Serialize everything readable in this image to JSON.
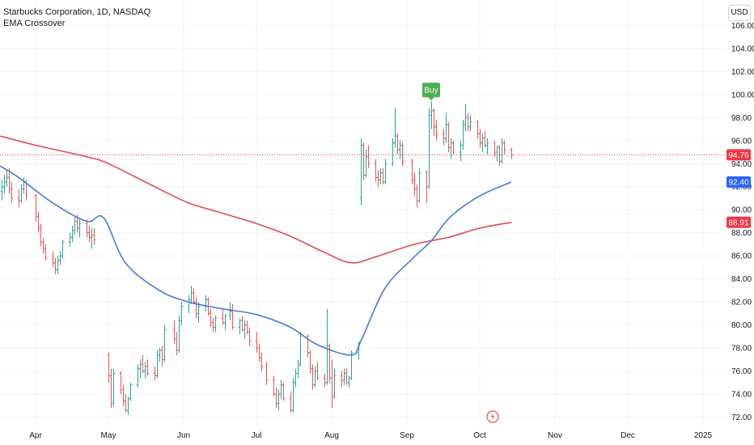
{
  "legend": {
    "symbol": "Starbucks Corporation, 1D, NASDAQ",
    "indicator": "EMA Crossover"
  },
  "currency": "USD",
  "colors": {
    "up": "#26a69a",
    "down": "#ef5350",
    "ema_fast": "#4a7bd8",
    "ema_slow": "#e34a54",
    "last_price_tag": "#f23645",
    "fast_tag": "#2962ff",
    "slow_tag": "#f23645",
    "buy_signal": "#4caf50",
    "grid": "#f0f3fa"
  },
  "chart_data": {
    "type": "ohlc",
    "ylim": [
      71.2,
      108.2
    ],
    "y_ticks": [
      "72.00",
      "74.00",
      "76.00",
      "78.00",
      "80.00",
      "82.00",
      "84.00",
      "86.00",
      "88.00",
      "90.00",
      "92.00",
      "94.00",
      "96.00",
      "98.00",
      "100.00",
      "102.00",
      "104.00",
      "106.00"
    ],
    "x_ticks": [
      {
        "label": "Apr",
        "x": "2024-04-01"
      },
      {
        "label": "May",
        "x": "2024-05-01"
      },
      {
        "label": "Jun",
        "x": "2024-06-01"
      },
      {
        "label": "Jul",
        "x": "2024-07-01"
      },
      {
        "label": "Aug",
        "x": "2024-08-01"
      },
      {
        "label": "Sep",
        "x": "2024-09-01"
      },
      {
        "label": "Oct",
        "x": "2024-10-01"
      },
      {
        "label": "Nov",
        "x": "2024-11-01"
      },
      {
        "label": "Dec",
        "x": "2024-12-01"
      },
      {
        "label": "2025",
        "x": "2025-01-01"
      }
    ],
    "grid": true,
    "last_price": {
      "label": "94.76",
      "value": 94.76
    },
    "ema_fast_last": {
      "label": "92.40",
      "value": 92.4
    },
    "ema_slow_last": {
      "label": "88.91",
      "value": 88.91
    },
    "buy_signal": {
      "label": "Buy",
      "date": "2024-09-11",
      "price": 99.2
    },
    "ema_fast": [
      [
        "2024-03-14",
        93.8
      ],
      [
        "2024-03-25",
        92.8
      ],
      [
        "2024-04-08",
        90.6
      ],
      [
        "2024-04-22",
        89.0
      ],
      [
        "2024-04-29",
        89.3
      ],
      [
        "2024-05-08",
        85.4
      ],
      [
        "2024-05-22",
        83.0
      ],
      [
        "2024-06-03",
        82.0
      ],
      [
        "2024-06-17",
        81.4
      ],
      [
        "2024-07-01",
        80.9
      ],
      [
        "2024-07-15",
        79.8
      ],
      [
        "2024-07-26",
        78.3
      ],
      [
        "2024-08-09",
        77.4
      ],
      [
        "2024-08-13",
        78.6
      ],
      [
        "2024-08-23",
        83.2
      ],
      [
        "2024-09-04",
        85.9
      ],
      [
        "2024-09-11",
        87.3
      ],
      [
        "2024-09-19",
        89.4
      ],
      [
        "2024-10-01",
        91.2
      ],
      [
        "2024-10-14",
        92.4
      ]
    ],
    "ema_slow": [
      [
        "2024-03-14",
        96.4
      ],
      [
        "2024-04-01",
        95.6
      ],
      [
        "2024-04-22",
        94.6
      ],
      [
        "2024-05-01",
        94.0
      ],
      [
        "2024-05-20",
        92.0
      ],
      [
        "2024-06-03",
        90.6
      ],
      [
        "2024-06-17",
        89.7
      ],
      [
        "2024-07-01",
        88.8
      ],
      [
        "2024-07-15",
        87.7
      ],
      [
        "2024-07-29",
        86.3
      ],
      [
        "2024-08-09",
        85.4
      ],
      [
        "2024-08-19",
        85.9
      ],
      [
        "2024-09-04",
        87.0
      ],
      [
        "2024-09-18",
        87.6
      ],
      [
        "2024-10-01",
        88.4
      ],
      [
        "2024-10-14",
        88.91
      ]
    ],
    "ohlc": [
      [
        "2024-03-15",
        91.0,
        92.4,
        90.2,
        91.6
      ],
      [
        "2024-03-18",
        91.6,
        92.6,
        90.8,
        92.0
      ],
      [
        "2024-03-19",
        92.0,
        93.0,
        91.4,
        92.4
      ],
      [
        "2024-03-20",
        92.4,
        93.4,
        92.0,
        92.8
      ],
      [
        "2024-03-21",
        92.8,
        93.6,
        91.4,
        91.8
      ],
      [
        "2024-03-22",
        91.8,
        92.4,
        90.6,
        91.0
      ],
      [
        "2024-03-25",
        91.0,
        91.8,
        90.2,
        90.8
      ],
      [
        "2024-03-26",
        90.8,
        92.2,
        90.6,
        91.8
      ],
      [
        "2024-03-27",
        91.8,
        92.8,
        91.4,
        92.4
      ],
      [
        "2024-03-28",
        92.4,
        92.6,
        90.8,
        91.2
      ],
      [
        "2024-04-01",
        91.2,
        91.4,
        89.0,
        89.4
      ],
      [
        "2024-04-02",
        89.4,
        89.8,
        88.0,
        88.4
      ],
      [
        "2024-04-03",
        88.4,
        88.8,
        86.8,
        87.2
      ],
      [
        "2024-04-04",
        87.2,
        87.6,
        86.2,
        86.6
      ],
      [
        "2024-04-05",
        86.6,
        87.0,
        85.6,
        85.8
      ],
      [
        "2024-04-08",
        85.8,
        86.4,
        85.0,
        85.4
      ],
      [
        "2024-04-09",
        85.4,
        85.8,
        84.4,
        84.8
      ],
      [
        "2024-04-10",
        84.8,
        86.0,
        84.4,
        85.6
      ],
      [
        "2024-04-11",
        85.6,
        86.4,
        85.2,
        86.0
      ],
      [
        "2024-04-12",
        86.0,
        87.4,
        85.8,
        87.2
      ],
      [
        "2024-04-15",
        87.2,
        88.0,
        86.8,
        87.6
      ],
      [
        "2024-04-16",
        87.6,
        88.6,
        87.2,
        88.2
      ],
      [
        "2024-04-17",
        88.2,
        89.4,
        87.8,
        89.0
      ],
      [
        "2024-04-18",
        89.0,
        89.6,
        88.0,
        88.4
      ],
      [
        "2024-04-19",
        88.4,
        89.2,
        87.6,
        88.8
      ],
      [
        "2024-04-22",
        88.8,
        89.2,
        87.6,
        88.0
      ],
      [
        "2024-04-23",
        88.0,
        88.6,
        87.2,
        87.6
      ],
      [
        "2024-04-24",
        87.6,
        88.4,
        86.6,
        87.8
      ],
      [
        "2024-04-25",
        87.8,
        88.4,
        87.0,
        87.4
      ],
      [
        "2024-05-01",
        77.4,
        77.6,
        75.0,
        75.6
      ],
      [
        "2024-05-02",
        75.6,
        76.2,
        72.8,
        73.2
      ],
      [
        "2024-05-03",
        73.2,
        76.2,
        72.9,
        75.8
      ],
      [
        "2024-05-06",
        75.8,
        76.0,
        74.0,
        74.4
      ],
      [
        "2024-05-07",
        74.4,
        74.8,
        73.0,
        73.4
      ],
      [
        "2024-05-08",
        73.4,
        74.0,
        72.4,
        72.6
      ],
      [
        "2024-05-09",
        72.6,
        73.8,
        72.2,
        73.6
      ],
      [
        "2024-05-10",
        73.6,
        75.0,
        73.4,
        74.8
      ],
      [
        "2024-05-13",
        74.8,
        76.6,
        74.6,
        76.2
      ],
      [
        "2024-05-14",
        76.2,
        77.0,
        75.4,
        76.6
      ],
      [
        "2024-05-15",
        76.6,
        77.4,
        75.8,
        76.0
      ],
      [
        "2024-05-16",
        76.0,
        76.8,
        75.4,
        76.4
      ],
      [
        "2024-05-17",
        76.4,
        77.0,
        75.6,
        75.8
      ],
      [
        "2024-05-20",
        75.8,
        76.4,
        75.2,
        75.6
      ],
      [
        "2024-05-21",
        75.6,
        77.8,
        75.4,
        77.4
      ],
      [
        "2024-05-22",
        77.4,
        78.0,
        76.8,
        77.8
      ],
      [
        "2024-05-23",
        77.8,
        78.2,
        76.4,
        77.0
      ],
      [
        "2024-05-24",
        77.0,
        80.0,
        76.8,
        79.6
      ],
      [
        "2024-05-28",
        79.6,
        80.4,
        78.4,
        78.8
      ],
      [
        "2024-05-29",
        78.8,
        79.4,
        77.4,
        77.8
      ],
      [
        "2024-05-30",
        77.8,
        80.8,
        77.6,
        80.4
      ],
      [
        "2024-05-31",
        80.4,
        82.0,
        80.0,
        81.6
      ],
      [
        "2024-06-03",
        81.6,
        82.6,
        81.0,
        82.2
      ],
      [
        "2024-06-04",
        82.2,
        83.4,
        81.8,
        82.8
      ],
      [
        "2024-06-05",
        82.8,
        83.2,
        81.8,
        82.0
      ],
      [
        "2024-06-06",
        82.0,
        82.4,
        80.6,
        81.0
      ],
      [
        "2024-06-07",
        81.0,
        82.0,
        80.2,
        81.6
      ],
      [
        "2024-06-10",
        81.6,
        82.6,
        81.2,
        82.2
      ],
      [
        "2024-06-11",
        82.2,
        82.4,
        80.8,
        81.0
      ],
      [
        "2024-06-12",
        81.0,
        81.4,
        79.8,
        80.2
      ],
      [
        "2024-06-13",
        80.2,
        80.6,
        79.4,
        79.8
      ],
      [
        "2024-06-14",
        79.8,
        80.8,
        79.4,
        80.6
      ],
      [
        "2024-06-17",
        80.6,
        81.4,
        80.0,
        80.2
      ],
      [
        "2024-06-18",
        80.2,
        81.0,
        79.6,
        80.8
      ],
      [
        "2024-06-20",
        80.8,
        82.0,
        80.4,
        81.2
      ],
      [
        "2024-06-21",
        81.2,
        81.8,
        79.6,
        79.8
      ],
      [
        "2024-06-24",
        79.8,
        80.6,
        79.2,
        80.4
      ],
      [
        "2024-06-25",
        80.4,
        80.8,
        79.4,
        79.6
      ],
      [
        "2024-06-26",
        79.6,
        80.4,
        78.8,
        80.0
      ],
      [
        "2024-06-27",
        80.0,
        80.4,
        79.2,
        79.4
      ],
      [
        "2024-06-28",
        79.4,
        79.8,
        78.2,
        78.6
      ],
      [
        "2024-07-01",
        78.6,
        79.4,
        77.6,
        78.0
      ],
      [
        "2024-07-02",
        78.0,
        78.4,
        76.8,
        77.2
      ],
      [
        "2024-07-03",
        77.2,
        77.6,
        76.0,
        76.4
      ],
      [
        "2024-07-05",
        76.4,
        76.8,
        74.8,
        75.2
      ],
      [
        "2024-07-08",
        75.2,
        75.6,
        73.8,
        74.0
      ],
      [
        "2024-07-09",
        74.0,
        74.6,
        72.8,
        73.2
      ],
      [
        "2024-07-10",
        73.2,
        74.4,
        72.6,
        74.0
      ],
      [
        "2024-07-11",
        74.0,
        75.2,
        73.6,
        74.8
      ],
      [
        "2024-07-12",
        74.8,
        75.0,
        73.4,
        73.6
      ],
      [
        "2024-07-15",
        73.6,
        74.2,
        72.4,
        72.6
      ],
      [
        "2024-07-16",
        72.6,
        75.4,
        72.4,
        75.0
      ],
      [
        "2024-07-17",
        75.0,
        76.2,
        74.6,
        75.8
      ],
      [
        "2024-07-18",
        75.8,
        77.0,
        75.4,
        76.6
      ],
      [
        "2024-07-19",
        76.6,
        79.4,
        76.4,
        79.0
      ],
      [
        "2024-07-22",
        79.0,
        79.2,
        77.2,
        77.6
      ],
      [
        "2024-07-23",
        77.6,
        77.8,
        75.8,
        76.2
      ],
      [
        "2024-07-24",
        76.2,
        76.6,
        74.4,
        74.8
      ],
      [
        "2024-07-25",
        74.8,
        76.4,
        74.6,
        76.0
      ],
      [
        "2024-07-26",
        76.0,
        76.8,
        75.2,
        75.4
      ],
      [
        "2024-07-29",
        75.4,
        75.8,
        74.6,
        75.0
      ],
      [
        "2024-07-30",
        75.0,
        81.4,
        74.8,
        78.2
      ],
      [
        "2024-07-31",
        78.2,
        78.4,
        75.0,
        75.4
      ],
      [
        "2024-08-01",
        75.4,
        77.0,
        72.8,
        73.8
      ],
      [
        "2024-08-02",
        73.8,
        76.2,
        73.6,
        75.6
      ],
      [
        "2024-08-05",
        75.6,
        76.0,
        74.6,
        75.2
      ],
      [
        "2024-08-06",
        75.2,
        76.2,
        74.8,
        75.8
      ],
      [
        "2024-08-07",
        75.8,
        76.2,
        74.8,
        75.0
      ],
      [
        "2024-08-08",
        75.0,
        75.6,
        74.6,
        75.4
      ],
      [
        "2024-08-09",
        75.4,
        77.8,
        75.2,
        77.6
      ],
      [
        "2024-08-12",
        77.6,
        78.6,
        77.0,
        78.2
      ],
      [
        "2024-08-13",
        91.0,
        96.2,
        90.4,
        95.6
      ],
      [
        "2024-08-14",
        95.6,
        95.8,
        92.6,
        93.0
      ],
      [
        "2024-08-15",
        93.0,
        95.2,
        92.8,
        94.6
      ],
      [
        "2024-08-16",
        94.6,
        95.6,
        93.6,
        94.0
      ],
      [
        "2024-08-19",
        94.0,
        94.4,
        92.4,
        92.8
      ],
      [
        "2024-08-20",
        92.8,
        93.4,
        92.0,
        92.6
      ],
      [
        "2024-08-21",
        92.6,
        93.6,
        92.2,
        93.2
      ],
      [
        "2024-08-22",
        93.2,
        93.6,
        92.2,
        92.4
      ],
      [
        "2024-08-23",
        92.4,
        94.4,
        92.2,
        94.0
      ],
      [
        "2024-08-26",
        94.0,
        96.2,
        93.8,
        95.8
      ],
      [
        "2024-08-27",
        95.8,
        98.8,
        95.4,
        96.4
      ],
      [
        "2024-08-28",
        96.4,
        96.6,
        94.8,
        95.2
      ],
      [
        "2024-08-29",
        95.2,
        96.0,
        94.4,
        95.6
      ],
      [
        "2024-08-30",
        95.6,
        95.8,
        93.8,
        94.2
      ],
      [
        "2024-09-03",
        94.2,
        94.4,
        92.2,
        92.6
      ],
      [
        "2024-09-04",
        92.6,
        93.2,
        91.2,
        91.8
      ],
      [
        "2024-09-05",
        91.8,
        92.2,
        90.2,
        90.8
      ],
      [
        "2024-09-06",
        90.8,
        93.6,
        90.6,
        93.2
      ],
      [
        "2024-09-09",
        93.2,
        93.4,
        90.6,
        92.0
      ],
      [
        "2024-09-10",
        92.0,
        98.8,
        91.8,
        98.2
      ],
      [
        "2024-09-11",
        98.2,
        99.4,
        97.0,
        98.6
      ],
      [
        "2024-09-12",
        98.6,
        98.8,
        96.4,
        97.2
      ],
      [
        "2024-09-13",
        97.2,
        97.8,
        96.0,
        96.6
      ],
      [
        "2024-09-16",
        96.6,
        97.0,
        95.6,
        96.2
      ],
      [
        "2024-09-17",
        96.2,
        98.4,
        95.8,
        97.4
      ],
      [
        "2024-09-18",
        97.4,
        97.6,
        95.0,
        95.4
      ],
      [
        "2024-09-19",
        95.4,
        96.2,
        94.4,
        95.8
      ],
      [
        "2024-09-20",
        95.8,
        96.0,
        94.8,
        95.0
      ],
      [
        "2024-09-23",
        95.0,
        96.0,
        94.2,
        95.6
      ],
      [
        "2024-09-24",
        95.6,
        97.8,
        95.2,
        97.4
      ],
      [
        "2024-09-25",
        97.4,
        99.2,
        96.8,
        98.0
      ],
      [
        "2024-09-26",
        98.0,
        98.4,
        96.8,
        97.2
      ],
      [
        "2024-09-27",
        97.2,
        98.2,
        96.8,
        97.6
      ],
      [
        "2024-09-30",
        97.6,
        97.8,
        96.2,
        96.6
      ],
      [
        "2024-10-01",
        96.6,
        97.0,
        95.4,
        95.8
      ],
      [
        "2024-10-02",
        95.8,
        96.6,
        95.0,
        96.2
      ],
      [
        "2024-10-03",
        96.2,
        96.8,
        95.4,
        95.6
      ],
      [
        "2024-10-04",
        95.6,
        96.2,
        94.8,
        95.8
      ],
      [
        "2024-10-07",
        95.8,
        96.0,
        94.6,
        95.0
      ],
      [
        "2024-10-08",
        95.0,
        95.6,
        94.2,
        95.4
      ],
      [
        "2024-10-09",
        95.4,
        95.6,
        93.8,
        94.2
      ],
      [
        "2024-10-10",
        94.2,
        96.2,
        94.0,
        95.8
      ],
      [
        "2024-10-11",
        95.8,
        96.0,
        94.8,
        95.2
      ],
      [
        "2024-10-14",
        95.2,
        95.4,
        94.4,
        94.76
      ]
    ]
  }
}
